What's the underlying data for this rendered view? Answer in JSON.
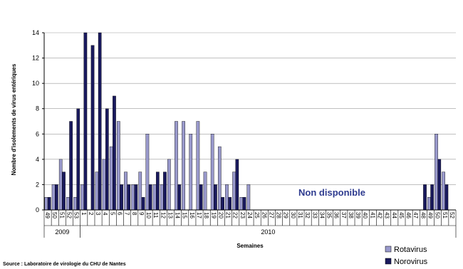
{
  "chart_data": {
    "type": "bar",
    "ylabel": "Nombre d'isolements de virus entériques",
    "xlabel": "Semaines",
    "ylim": [
      0,
      14
    ],
    "yticks": [
      0,
      2,
      4,
      6,
      8,
      10,
      12,
      14
    ],
    "categories": [
      "49",
      "50",
      "51",
      "52",
      "53",
      "1",
      "2",
      "3",
      "4",
      "5",
      "6",
      "7",
      "8",
      "9",
      "10",
      "11",
      "12",
      "13",
      "14",
      "15",
      "16",
      "17",
      "18",
      "19",
      "20",
      "21",
      "22",
      "23",
      "24",
      "25",
      "26",
      "27",
      "28",
      "29",
      "30",
      "31",
      "32",
      "33",
      "34",
      "35",
      "36",
      "37",
      "38",
      "39",
      "40",
      "41",
      "42",
      "43",
      "44",
      "45",
      "46",
      "47",
      "48",
      "49",
      "50",
      "51",
      "52"
    ],
    "year_groups": [
      {
        "label": "2009",
        "start": 0,
        "end": 4
      },
      {
        "label": "2010",
        "start": 5,
        "end": 56
      }
    ],
    "series": [
      {
        "name": "Rotavirus",
        "color": "#9999cc",
        "values": [
          1,
          2,
          4,
          1,
          1,
          2,
          0,
          3,
          4,
          5,
          7,
          3,
          2,
          3,
          6,
          2,
          2,
          4,
          7,
          7,
          6,
          7,
          3,
          6,
          5,
          2,
          3,
          1,
          2,
          0,
          0,
          0,
          0,
          0,
          0,
          0,
          0,
          0,
          0,
          0,
          0,
          0,
          0,
          0,
          0,
          0,
          0,
          0,
          0,
          0,
          0,
          0,
          0,
          1,
          6,
          3,
          0
        ]
      },
      {
        "name": "Norovirus",
        "color": "#1a1a5e",
        "values": [
          1,
          2,
          3,
          7,
          8,
          14,
          13,
          14,
          8,
          9,
          2,
          2,
          2,
          1,
          2,
          3,
          3,
          0,
          2,
          0,
          0,
          2,
          0,
          2,
          1,
          1,
          4,
          1,
          0,
          0,
          0,
          0,
          0,
          0,
          0,
          0,
          0,
          0,
          0,
          0,
          0,
          0,
          0,
          0,
          0,
          0,
          0,
          0,
          0,
          0,
          0,
          0,
          2,
          2,
          4,
          2,
          0
        ]
      }
    ],
    "annotation": "Non disponible",
    "legend_position": "bottom-right",
    "grid": true
  },
  "source": "Source : Laboratoire de virologie du CHU de Nantes"
}
